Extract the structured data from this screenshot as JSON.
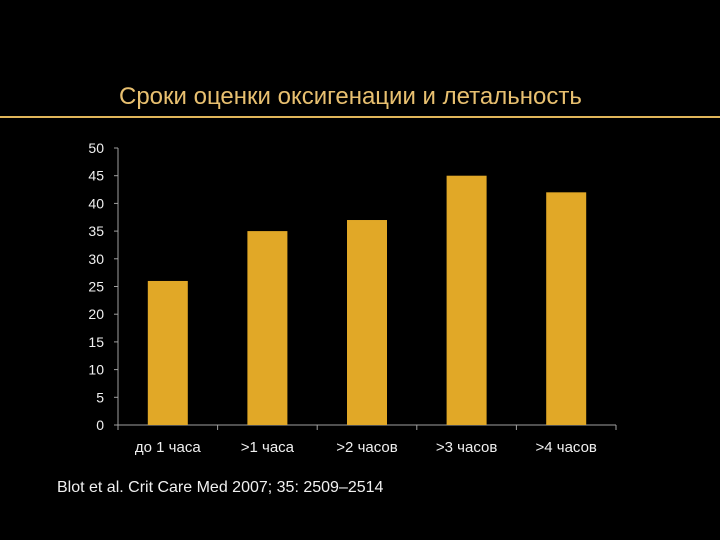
{
  "slide": {
    "title": "Сроки оценки оксигенации и летальность",
    "citation": "Blot et al. Crit Care Med 2007; 35: 2509–2514"
  },
  "colors": {
    "background": "#000000",
    "title": "#e8c070",
    "rule": "#e0b55a",
    "bar": "#e1a827",
    "axis": "#a0a0a0",
    "tick_text": "#f0f0f0"
  },
  "chart_data": {
    "type": "bar",
    "categories": [
      "до 1 часа",
      ">1 часа",
      ">2 часов",
      ">3 часов",
      ">4 часов"
    ],
    "values": [
      26,
      35,
      37,
      45,
      42
    ],
    "title": "",
    "xlabel": "",
    "ylabel": "",
    "ylim": [
      0,
      50
    ],
    "yticks": [
      "0",
      "5",
      "10",
      "15",
      "20",
      "25",
      "30",
      "35",
      "40",
      "45",
      "50"
    ],
    "grid": false,
    "legend": "none"
  }
}
